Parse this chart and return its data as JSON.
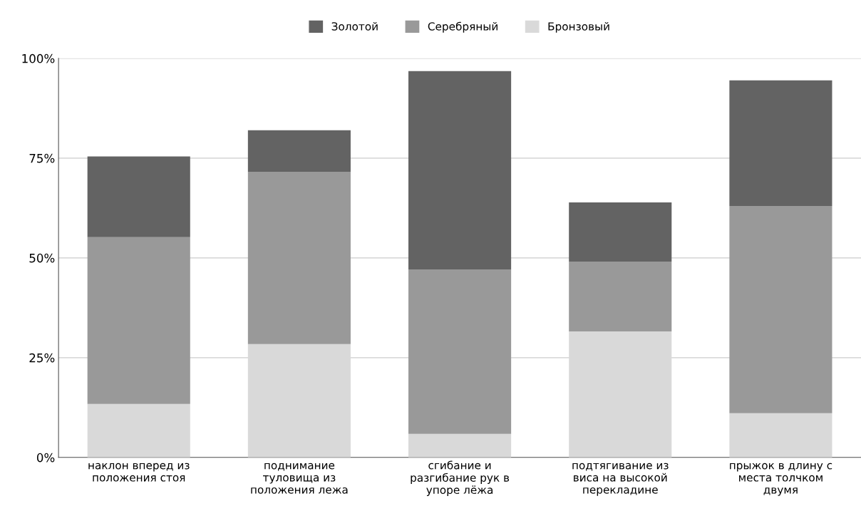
{
  "chart_data": {
    "type": "bar",
    "stacked": true,
    "categories": [
      "наклон вперед из\nположения стоя",
      "поднимание\nтуловища из\nположения лежа",
      "сгибание и\nразгибание рук в\nупоре лёжа",
      "подтягивание из\nвиса на высокой\nперекладине",
      "прыжок в длину с\nместа толчком\nдвумя"
    ],
    "series": [
      {
        "name": "Бронзовый",
        "color": "#d9d9d9",
        "values": [
          13.4,
          28.4,
          5.9,
          31.6,
          11.1
        ]
      },
      {
        "name": "Серебряный",
        "color": "#999999",
        "values": [
          41.8,
          43.2,
          41.2,
          17.5,
          51.9
        ]
      },
      {
        "name": "Золотой",
        "color": "#636363",
        "values": [
          20.2,
          10.4,
          49.7,
          14.8,
          31.5
        ]
      }
    ],
    "ylim": [
      0,
      100
    ],
    "yticks": [
      {
        "value": 0,
        "label": "0%"
      },
      {
        "value": 25,
        "label": "25%"
      },
      {
        "value": 50,
        "label": "50%"
      },
      {
        "value": 75,
        "label": "75%"
      },
      {
        "value": 100,
        "label": "100%"
      }
    ],
    "grid": "y",
    "legend": "top"
  }
}
